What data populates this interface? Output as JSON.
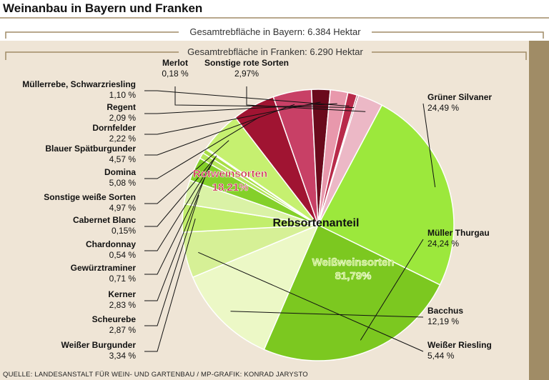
{
  "title": "Weinanbau in Bayern und Franken",
  "header_bayern": "Gesamtrebfläche in Bayern: 6.384 Hektar",
  "header_franken": "Gesamtrebfläche in Franken: 6.290 Hektar",
  "center_label": "Rebsortenanteil",
  "source": "QUELLE: LANDESANSTALT FÜR WEIN- UND GARTENBAU / MP-GRAFIK: KONRAD JARYSTO",
  "colors": {
    "background": "#efe5d6",
    "border": "#a08c66",
    "weiss_group_text": "#b8e85a",
    "rot_group_text": "#c8183e"
  },
  "chart_data": {
    "type": "pie",
    "groups": [
      {
        "name": "Weißweinsorten",
        "value": "81,79%"
      },
      {
        "name": "Rotweinsorten",
        "value": "18,21%"
      }
    ],
    "slices": [
      {
        "name": "Grüner Silvaner",
        "label": "24,49 %",
        "value": 24.49,
        "color": "#9ce83c",
        "group": "weiss"
      },
      {
        "name": "Müller Thurgau",
        "label": "24,24 %",
        "value": 24.24,
        "color": "#7cc820",
        "group": "weiss"
      },
      {
        "name": "Bacchus",
        "label": "12,19 %",
        "value": 12.19,
        "color": "#ecf8c6",
        "group": "weiss"
      },
      {
        "name": "Weißer Riesling",
        "label": "5,44 %",
        "value": 5.44,
        "color": "#d6f096",
        "group": "weiss"
      },
      {
        "name": "Weißer Burgunder",
        "label": "3,34 %",
        "value": 3.34,
        "color": "#c2ee6c",
        "group": "weiss"
      },
      {
        "name": "Scheurebe",
        "label": "2,87 %",
        "value": 2.87,
        "color": "#daf2a6",
        "group": "weiss"
      },
      {
        "name": "Kerner",
        "label": "2,83 %",
        "value": 2.83,
        "color": "#84d02a",
        "group": "weiss"
      },
      {
        "name": "Gewürztraminer",
        "label": "0,71 %",
        "value": 0.71,
        "color": "#b4e65a",
        "group": "weiss"
      },
      {
        "name": "Chardonnay",
        "label": "0,54 %",
        "value": 0.54,
        "color": "#a8de44",
        "group": "weiss"
      },
      {
        "name": "Cabernet Blanc",
        "label": "0,15%",
        "value": 0.15,
        "color": "#c4ee7a",
        "group": "weiss"
      },
      {
        "name": "Sonstige weiße Sorten",
        "label": "4,97 %",
        "value": 4.97,
        "color": "#c6f070",
        "group": "weiss"
      },
      {
        "name": "Domina",
        "label": "5,08 %",
        "value": 5.08,
        "color": "#a01432",
        "group": "rot"
      },
      {
        "name": "Blauer Spätburgunder",
        "label": "4,57 %",
        "value": 4.57,
        "color": "#c84066",
        "group": "rot"
      },
      {
        "name": "Dornfelder",
        "label": "2,22 %",
        "value": 2.22,
        "color": "#6a0a1c",
        "group": "rot"
      },
      {
        "name": "Regent",
        "label": "2,09 %",
        "value": 2.09,
        "color": "#e898ac",
        "group": "rot"
      },
      {
        "name": "Müllerrebe, Schwarzriesling",
        "label": "1,10 %",
        "value": 1.1,
        "color": "#b82a4a",
        "group": "rot"
      },
      {
        "name": "Merlot",
        "label": "0,18 %",
        "value": 0.18,
        "color": "#7a1024",
        "group": "rot"
      },
      {
        "name": "Sonstige rote Sorten",
        "label": "2,97%",
        "value": 2.97,
        "color": "#ecb8c6",
        "group": "rot"
      }
    ]
  }
}
